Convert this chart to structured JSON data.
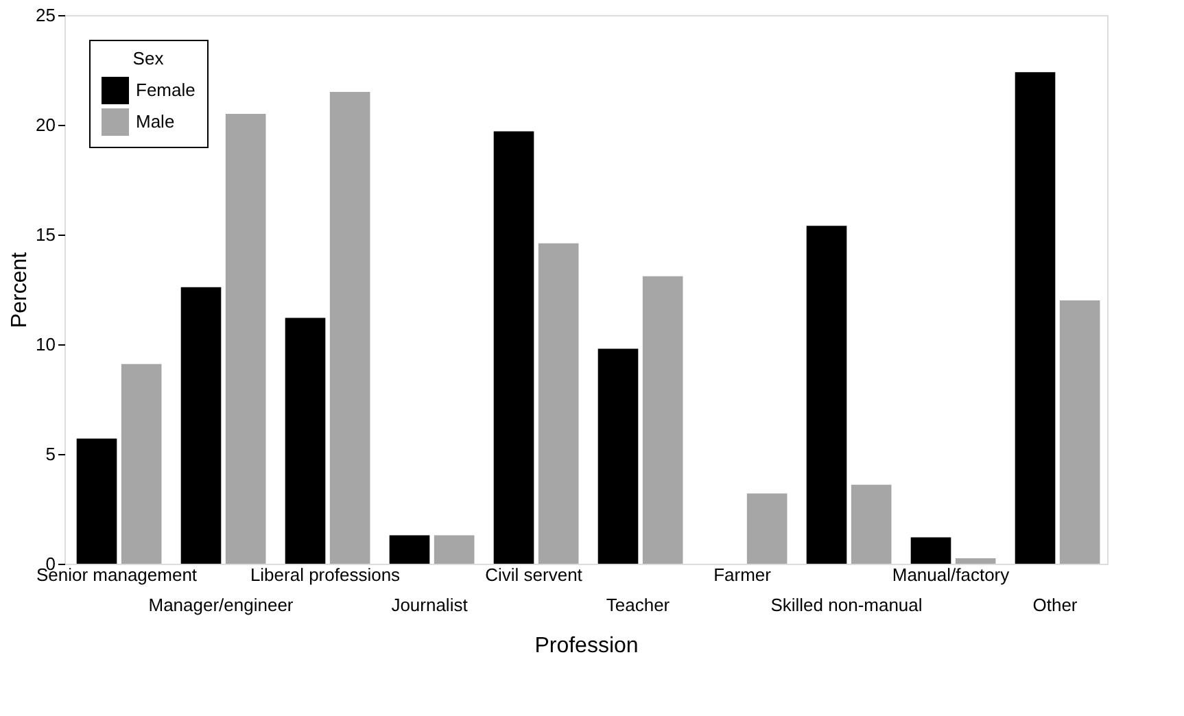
{
  "chart_data": {
    "type": "bar",
    "xlabel": "Profession",
    "ylabel": "Percent",
    "legend_title": "Sex",
    "categories": [
      "Senior management",
      "Manager/engineer",
      "Liberal professions",
      "Journalist",
      "Civil servent",
      "Teacher",
      "Farmer",
      "Skilled non-manual",
      "Manual/factory",
      "Other"
    ],
    "series": [
      {
        "name": "Female",
        "color": "#000000",
        "values": [
          5.7,
          12.6,
          11.2,
          1.3,
          19.7,
          9.8,
          0,
          15.4,
          1.2,
          22.4
        ]
      },
      {
        "name": "Male",
        "color": "#a6a6a6",
        "values": [
          9.1,
          20.5,
          21.5,
          1.3,
          14.6,
          13.1,
          3.2,
          3.6,
          0.25,
          12.0
        ]
      }
    ],
    "ylim": [
      0,
      25
    ],
    "yticks": [
      0,
      5,
      10,
      15,
      20,
      25
    ],
    "grid": false,
    "legend": "top left"
  }
}
